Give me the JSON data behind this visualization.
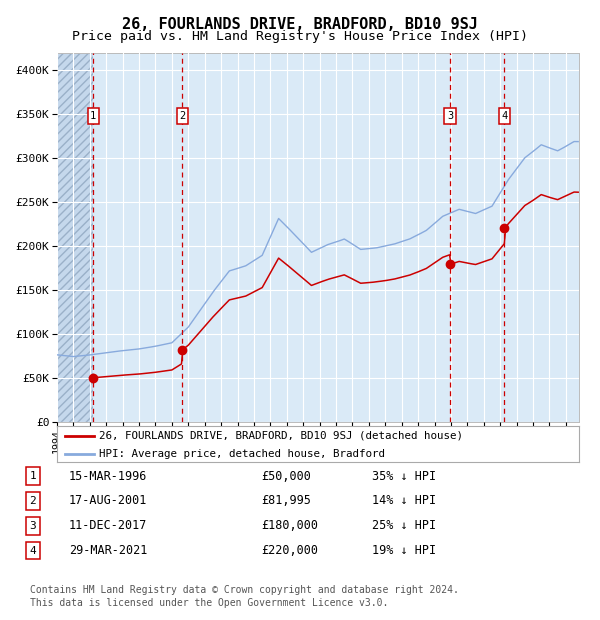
{
  "title": "26, FOURLANDS DRIVE, BRADFORD, BD10 9SJ",
  "subtitle": "Price paid vs. HM Land Registry's House Price Index (HPI)",
  "ylim": [
    0,
    420000
  ],
  "yticks": [
    0,
    50000,
    100000,
    150000,
    200000,
    250000,
    300000,
    350000,
    400000
  ],
  "ytick_labels": [
    "£0",
    "£50K",
    "£100K",
    "£150K",
    "£200K",
    "£250K",
    "£300K",
    "£350K",
    "£400K"
  ],
  "xlim_start": 1994.0,
  "xlim_end": 2025.8,
  "background_color": "#ffffff",
  "plot_bg_color": "#daeaf7",
  "grid_color": "#ffffff",
  "sale_color": "#cc0000",
  "hpi_color": "#88aadd",
  "title_fontsize": 11,
  "subtitle_fontsize": 9.5,
  "purchases": [
    {
      "num": 1,
      "date_num": 1996.21,
      "price": 50000,
      "label": "1",
      "date_str": "15-MAR-1996",
      "price_str": "£50,000",
      "pct": "35% ↓ HPI"
    },
    {
      "num": 2,
      "date_num": 2001.63,
      "price": 81995,
      "label": "2",
      "date_str": "17-AUG-2001",
      "price_str": "£81,995",
      "pct": "14% ↓ HPI"
    },
    {
      "num": 3,
      "date_num": 2017.95,
      "price": 180000,
      "label": "3",
      "date_str": "11-DEC-2017",
      "price_str": "£180,000",
      "pct": "25% ↓ HPI"
    },
    {
      "num": 4,
      "date_num": 2021.25,
      "price": 220000,
      "label": "4",
      "date_str": "29-MAR-2021",
      "price_str": "£220,000",
      "pct": "19% ↓ HPI"
    }
  ],
  "legend_line1": "26, FOURLANDS DRIVE, BRADFORD, BD10 9SJ (detached house)",
  "legend_line2": "HPI: Average price, detached house, Bradford",
  "footer1": "Contains HM Land Registry data © Crown copyright and database right 2024.",
  "footer2": "This data is licensed under the Open Government Licence v3.0.",
  "hpi_anchors": {
    "1994.0": 76000,
    "1995.0": 74000,
    "1996.0": 76000,
    "1997.5": 80000,
    "1999.0": 83000,
    "2000.0": 86000,
    "2001.0": 90000,
    "2002.0": 108000,
    "2003.5": 148000,
    "2004.5": 172000,
    "2005.5": 178000,
    "2006.5": 190000,
    "2007.5": 232000,
    "2008.5": 213000,
    "2009.5": 193000,
    "2010.5": 202000,
    "2011.5": 208000,
    "2012.5": 196000,
    "2013.5": 198000,
    "2014.5": 202000,
    "2015.5": 208000,
    "2016.5": 218000,
    "2017.5": 234000,
    "2018.5": 242000,
    "2019.5": 237000,
    "2020.5": 245000,
    "2021.5": 275000,
    "2022.5": 300000,
    "2023.5": 315000,
    "2024.5": 308000,
    "2025.5": 318000
  }
}
